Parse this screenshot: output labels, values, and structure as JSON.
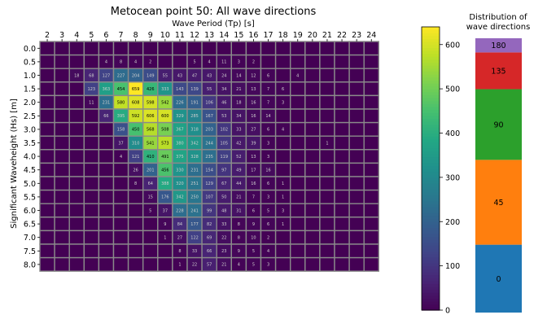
{
  "colors": {
    "grid_line": "#8a8a8a",
    "colormap": [
      "#440154",
      "#482374",
      "#404387",
      "#345e8d",
      "#29788e",
      "#20908c",
      "#22a784",
      "#44bf70",
      "#7ad151",
      "#bddf26",
      "#fde725"
    ],
    "direction_colors": [
      "#1f77b4",
      "#ff7f0e",
      "#2ca02c",
      "#d62728",
      "#9467bd"
    ]
  },
  "chart_data": [
    {
      "type": "heatmap",
      "title": "Metocean point 50: All wave directions",
      "xlabel": "Wave Period (Tp) [s]",
      "ylabel": "Significant Waveheight (Hs) [m]",
      "x": [
        "2",
        "3",
        "4",
        "5",
        "6",
        "7",
        "8",
        "9",
        "10",
        "11",
        "12",
        "13",
        "14",
        "15",
        "16",
        "17",
        "18",
        "19",
        "20",
        "21",
        "22",
        "23",
        "24"
      ],
      "y": [
        "0.0",
        "0.5",
        "1.0",
        "1.5",
        "2.0",
        "2.5",
        "3.0",
        "3.5",
        "4.0",
        "4.5",
        "5.0",
        "5.5",
        "6.0",
        "6.5",
        "7.0",
        "7.5",
        "8.0"
      ],
      "x_axis_position": "top",
      "grid": true,
      "colorbar": {
        "range": [
          0,
          640
        ],
        "ticks": [
          "0",
          "100",
          "200",
          "300",
          "400",
          "500",
          "600"
        ]
      },
      "values": [
        [
          0,
          0,
          0,
          0,
          0,
          0,
          0,
          0,
          0,
          0,
          0,
          0,
          0,
          0,
          0,
          0,
          0,
          0,
          0,
          0,
          0,
          0,
          0
        ],
        [
          0,
          0,
          0,
          0,
          4,
          8,
          4,
          2,
          0,
          0,
          5,
          4,
          11,
          3,
          2,
          0,
          0,
          0,
          0,
          0,
          0,
          0,
          0
        ],
        [
          0,
          0,
          18,
          68,
          127,
          227,
          204,
          149,
          55,
          43,
          47,
          43,
          24,
          14,
          12,
          6,
          0,
          4,
          0,
          0,
          0,
          0,
          0
        ],
        [
          0,
          0,
          0,
          123,
          363,
          454,
          659,
          426,
          333,
          143,
          139,
          55,
          34,
          21,
          13,
          7,
          6,
          0,
          0,
          0,
          0,
          0,
          0
        ],
        [
          0,
          0,
          0,
          11,
          231,
          580,
          608,
          598,
          542,
          226,
          191,
          106,
          46,
          18,
          16,
          7,
          3,
          0,
          0,
          0,
          0,
          0,
          0
        ],
        [
          0,
          0,
          0,
          0,
          66,
          395,
          592,
          606,
          600,
          329,
          285,
          167,
          53,
          34,
          16,
          14,
          0,
          0,
          0,
          0,
          0,
          0,
          0
        ],
        [
          0,
          0,
          0,
          0,
          0,
          158,
          450,
          568,
          508,
          367,
          318,
          203,
          102,
          33,
          27,
          6,
          4,
          0,
          0,
          0,
          0,
          0,
          0
        ],
        [
          0,
          0,
          0,
          0,
          0,
          37,
          310,
          541,
          573,
          380,
          342,
          244,
          105,
          42,
          39,
          3,
          0,
          0,
          0,
          1,
          0,
          0,
          0
        ],
        [
          0,
          0,
          0,
          0,
          0,
          4,
          121,
          410,
          491,
          375,
          328,
          235,
          119,
          52,
          13,
          3,
          0,
          0,
          0,
          0,
          0,
          0,
          0
        ],
        [
          0,
          0,
          0,
          0,
          0,
          0,
          26,
          201,
          456,
          330,
          231,
          154,
          97,
          49,
          17,
          16,
          0,
          0,
          0,
          0,
          0,
          0,
          0
        ],
        [
          0,
          0,
          0,
          0,
          0,
          0,
          8,
          64,
          388,
          320,
          251,
          129,
          67,
          44,
          16,
          6,
          1,
          0,
          0,
          0,
          0,
          0,
          0
        ],
        [
          0,
          0,
          0,
          0,
          0,
          0,
          0,
          15,
          176,
          342,
          250,
          107,
          50,
          21,
          7,
          3,
          1,
          0,
          0,
          0,
          0,
          0,
          0
        ],
        [
          0,
          0,
          0,
          0,
          0,
          0,
          0,
          5,
          37,
          228,
          241,
          99,
          48,
          31,
          6,
          5,
          3,
          0,
          0,
          0,
          0,
          0,
          0
        ],
        [
          0,
          0,
          0,
          0,
          0,
          0,
          0,
          0,
          9,
          84,
          177,
          82,
          33,
          8,
          9,
          6,
          1,
          0,
          0,
          0,
          0,
          0,
          0
        ],
        [
          0,
          0,
          0,
          0,
          0,
          0,
          0,
          0,
          1,
          27,
          122,
          69,
          22,
          8,
          10,
          2,
          0,
          0,
          0,
          0,
          0,
          0,
          0
        ],
        [
          0,
          0,
          0,
          0,
          0,
          0,
          0,
          0,
          0,
          8,
          33,
          66,
          23,
          9,
          5,
          4,
          0,
          0,
          0,
          0,
          0,
          0,
          0
        ],
        [
          0,
          0,
          0,
          0,
          0,
          0,
          0,
          0,
          0,
          1,
          22,
          57,
          21,
          4,
          5,
          3,
          0,
          0,
          0,
          0,
          0,
          0,
          0
        ]
      ]
    },
    {
      "type": "bar",
      "title": "Distribution of\nwave directions",
      "stacked": true,
      "categories": [
        "0",
        "45",
        "90",
        "135",
        "180"
      ],
      "values": [
        24,
        30,
        25,
        13,
        5
      ]
    }
  ]
}
